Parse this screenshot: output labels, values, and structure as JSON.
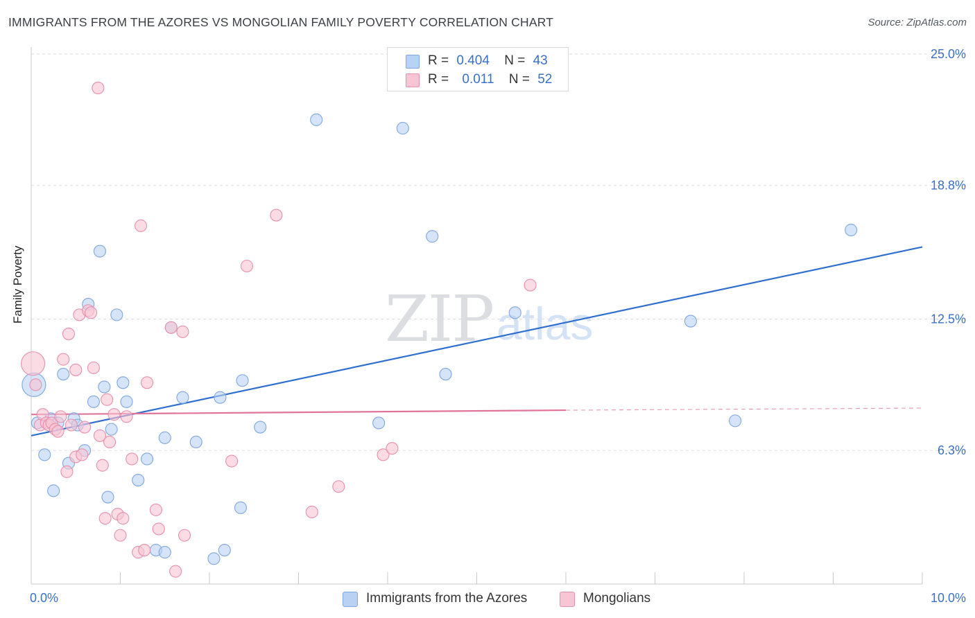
{
  "title": "IMMIGRANTS FROM THE AZORES VS MONGOLIAN FAMILY POVERTY CORRELATION CHART",
  "source": "Source: ZipAtlas.com",
  "watermark": {
    "zip": "ZIP",
    "atlas": "atlas"
  },
  "legend_top": {
    "row1": {
      "r_label": "R =",
      "r_value": "0.404",
      "n_label": "N =",
      "n_value": "43"
    },
    "row2": {
      "r_label": "R =",
      "r_value": "0.011",
      "n_label": "N =",
      "n_value": "52"
    }
  },
  "colors": {
    "blue_fill": "#b9d2f4",
    "blue_stroke": "#7ea6e0",
    "blue_line": "#2f6fd0",
    "pink_fill": "#f8c5d4",
    "pink_stroke": "#e88fab",
    "pink_line": "#e0739a",
    "tick_label": "#3a6fc7",
    "grid": "#d9dbe0"
  },
  "chart_data": {
    "type": "scatter",
    "title": "IMMIGRANTS FROM THE AZORES VS MONGOLIAN FAMILY POVERTY CORRELATION CHART",
    "xlabel": "",
    "ylabel": "Family Poverty",
    "xlim": [
      0,
      10
    ],
    "ylim": [
      0,
      25
    ],
    "x_tick_labels": [
      "0.0%",
      "10.0%"
    ],
    "y_ticks": [
      6.3,
      12.5,
      18.8,
      25.0
    ],
    "y_tick_labels": [
      "6.3%",
      "12.5%",
      "18.8%",
      "25.0%"
    ],
    "grid": "horizontal dashed",
    "series": [
      {
        "name": "Immigrants from the Azores",
        "color": "#b9d2f4",
        "r": 0.404,
        "n": 43,
        "trend": {
          "x": [
            0,
            10
          ],
          "y": [
            7.0,
            15.9
          ]
        },
        "points": [
          {
            "x": 0.03,
            "y": 9.4,
            "big": true
          },
          {
            "x": 0.07,
            "y": 7.6
          },
          {
            "x": 0.15,
            "y": 6.1
          },
          {
            "x": 0.22,
            "y": 7.8
          },
          {
            "x": 0.25,
            "y": 4.4
          },
          {
            "x": 0.3,
            "y": 7.6
          },
          {
            "x": 0.36,
            "y": 9.9
          },
          {
            "x": 0.42,
            "y": 5.7
          },
          {
            "x": 0.48,
            "y": 7.8
          },
          {
            "x": 0.52,
            "y": 7.5
          },
          {
            "x": 0.6,
            "y": 6.3
          },
          {
            "x": 0.64,
            "y": 13.2
          },
          {
            "x": 0.7,
            "y": 8.6
          },
          {
            "x": 0.77,
            "y": 15.7
          },
          {
            "x": 0.82,
            "y": 9.3
          },
          {
            "x": 0.86,
            "y": 4.1
          },
          {
            "x": 0.9,
            "y": 7.3
          },
          {
            "x": 0.96,
            "y": 12.7
          },
          {
            "x": 1.03,
            "y": 9.5
          },
          {
            "x": 1.07,
            "y": 8.6
          },
          {
            "x": 1.2,
            "y": 4.9
          },
          {
            "x": 1.3,
            "y": 5.9
          },
          {
            "x": 1.4,
            "y": 1.6
          },
          {
            "x": 1.5,
            "y": 1.5
          },
          {
            "x": 1.5,
            "y": 6.9
          },
          {
            "x": 1.57,
            "y": 12.1
          },
          {
            "x": 1.7,
            "y": 8.8
          },
          {
            "x": 1.85,
            "y": 6.7
          },
          {
            "x": 2.05,
            "y": 1.2
          },
          {
            "x": 2.12,
            "y": 8.8
          },
          {
            "x": 2.17,
            "y": 1.6
          },
          {
            "x": 2.35,
            "y": 3.6
          },
          {
            "x": 2.37,
            "y": 9.6
          },
          {
            "x": 2.57,
            "y": 7.4
          },
          {
            "x": 3.2,
            "y": 21.9
          },
          {
            "x": 3.9,
            "y": 7.6
          },
          {
            "x": 4.17,
            "y": 21.5
          },
          {
            "x": 4.5,
            "y": 16.4
          },
          {
            "x": 4.65,
            "y": 9.9
          },
          {
            "x": 5.43,
            "y": 12.8
          },
          {
            "x": 7.4,
            "y": 12.4
          },
          {
            "x": 7.9,
            "y": 7.7
          },
          {
            "x": 9.2,
            "y": 16.7
          }
        ]
      },
      {
        "name": "Mongolians",
        "color": "#f8c5d4",
        "r": 0.011,
        "n": 52,
        "trend": {
          "x": [
            0,
            6.0
          ],
          "y": [
            8.0,
            8.2
          ],
          "dashed_to": {
            "x": 10,
            "y": 8.3
          }
        },
        "points": [
          {
            "x": 0.02,
            "y": 10.4,
            "big": true
          },
          {
            "x": 0.05,
            "y": 9.4
          },
          {
            "x": 0.1,
            "y": 7.5
          },
          {
            "x": 0.13,
            "y": 8.0
          },
          {
            "x": 0.17,
            "y": 7.6
          },
          {
            "x": 0.2,
            "y": 7.5
          },
          {
            "x": 0.23,
            "y": 7.6
          },
          {
            "x": 0.27,
            "y": 7.3
          },
          {
            "x": 0.3,
            "y": 7.2
          },
          {
            "x": 0.33,
            "y": 7.9
          },
          {
            "x": 0.36,
            "y": 10.6
          },
          {
            "x": 0.4,
            "y": 5.3
          },
          {
            "x": 0.42,
            "y": 11.8
          },
          {
            "x": 0.45,
            "y": 7.5
          },
          {
            "x": 0.5,
            "y": 6.0
          },
          {
            "x": 0.5,
            "y": 10.1
          },
          {
            "x": 0.54,
            "y": 12.7
          },
          {
            "x": 0.57,
            "y": 6.1
          },
          {
            "x": 0.6,
            "y": 7.4
          },
          {
            "x": 0.64,
            "y": 12.9
          },
          {
            "x": 0.67,
            "y": 12.8
          },
          {
            "x": 0.7,
            "y": 10.2
          },
          {
            "x": 0.75,
            "y": 23.4
          },
          {
            "x": 0.77,
            "y": 7.0
          },
          {
            "x": 0.8,
            "y": 5.6
          },
          {
            "x": 0.83,
            "y": 3.1
          },
          {
            "x": 0.85,
            "y": 8.7
          },
          {
            "x": 0.88,
            "y": 6.7
          },
          {
            "x": 0.93,
            "y": 8.0
          },
          {
            "x": 0.97,
            "y": 3.3
          },
          {
            "x": 1.0,
            "y": 2.3
          },
          {
            "x": 1.03,
            "y": 3.1
          },
          {
            "x": 1.07,
            "y": 7.9
          },
          {
            "x": 1.13,
            "y": 5.9
          },
          {
            "x": 1.2,
            "y": 1.5
          },
          {
            "x": 1.23,
            "y": 16.9
          },
          {
            "x": 1.27,
            "y": 1.6
          },
          {
            "x": 1.3,
            "y": 9.5
          },
          {
            "x": 1.4,
            "y": 3.5
          },
          {
            "x": 1.43,
            "y": 2.6
          },
          {
            "x": 1.57,
            "y": 12.1
          },
          {
            "x": 1.62,
            "y": 0.6
          },
          {
            "x": 1.7,
            "y": 11.9
          },
          {
            "x": 1.72,
            "y": 2.3
          },
          {
            "x": 2.25,
            "y": 5.8
          },
          {
            "x": 2.42,
            "y": 15.0
          },
          {
            "x": 2.75,
            "y": 17.4
          },
          {
            "x": 3.15,
            "y": 3.4
          },
          {
            "x": 3.45,
            "y": 4.6
          },
          {
            "x": 3.95,
            "y": 6.1
          },
          {
            "x": 4.05,
            "y": 6.4
          },
          {
            "x": 5.6,
            "y": 14.1
          }
        ]
      }
    ]
  },
  "legend_bottom": [
    {
      "label": "Immigrants from the Azores"
    },
    {
      "label": "Mongolians"
    }
  ]
}
